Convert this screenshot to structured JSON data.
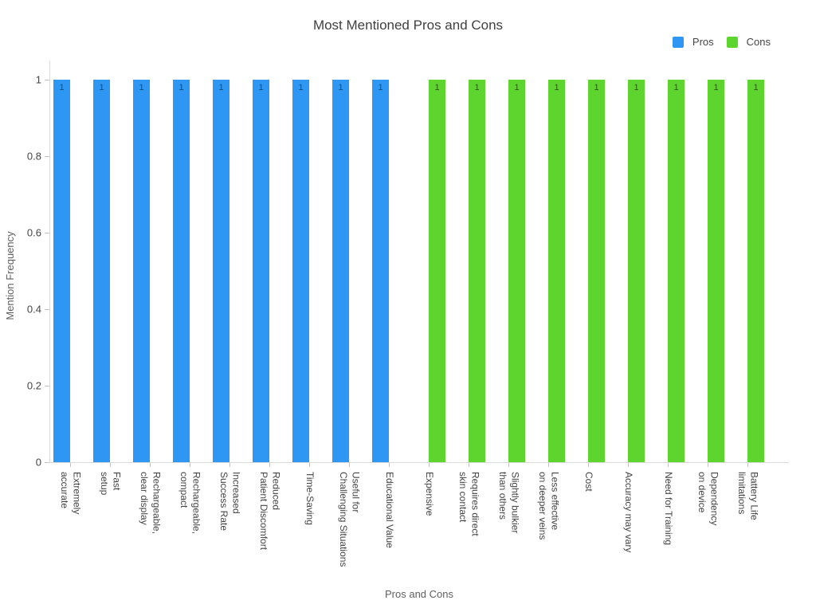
{
  "chart_data": {
    "type": "bar",
    "title": "Most Mentioned Pros and Cons",
    "xlabel": "Pros and Cons",
    "ylabel": "Mention Frequency",
    "ylim": [
      0,
      1.05
    ],
    "yticks": [
      0,
      0.2,
      0.4,
      0.6,
      0.8,
      1
    ],
    "ytick_labels": [
      "0",
      "0.2",
      "0.4",
      "0.6",
      "0.8",
      "1"
    ],
    "grid": false,
    "legend_position": "top-right",
    "bar_value_label": "1",
    "categories": [
      "Extremely\naccurate",
      "Fast\nsetup",
      "Rechargeable,\nclear display",
      "Rechargeable,\ncompact",
      "Increased\nSuccess Rate",
      "Reduced\nPatient Discomfort",
      "Time-Saving",
      "Useful for\nChallenging Situations",
      "Educational Value",
      "Expensive",
      "Requires direct\nskin contact",
      "Slightly bulkier\nthan others",
      "Less effective\non deeper veins",
      "Cost",
      "Accuracy may vary",
      "Need for Training",
      "Dependency\non device",
      "Battery Life\nlimitations"
    ],
    "series": [
      {
        "name": "Pros",
        "color": "#2e96f3",
        "value_label_color": "#1b4a6b",
        "values": [
          1,
          1,
          1,
          1,
          1,
          1,
          1,
          1,
          1,
          0,
          0,
          0,
          0,
          0,
          0,
          0,
          0,
          0
        ]
      },
      {
        "name": "Cons",
        "color": "#5dd52e",
        "value_label_color": "#2b5a10",
        "values": [
          0,
          0,
          0,
          0,
          0,
          0,
          0,
          0,
          0,
          1,
          1,
          1,
          1,
          1,
          1,
          1,
          1,
          1
        ]
      }
    ]
  }
}
